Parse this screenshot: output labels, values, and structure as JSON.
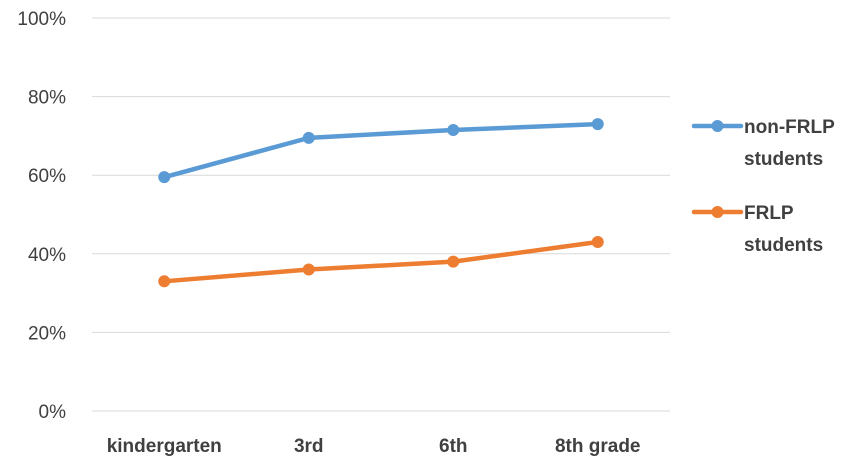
{
  "chart_data": {
    "type": "line",
    "title": "",
    "xlabel": "",
    "ylabel": "",
    "categories": [
      "kindergarten",
      "3rd",
      "6th",
      "8th grade"
    ],
    "y_ticks": [
      "0%",
      "20%",
      "40%",
      "60%",
      "80%",
      "100%"
    ],
    "ylim": [
      0,
      100
    ],
    "grid": true,
    "legend_position": "right",
    "series": [
      {
        "name": "non-FRLP students",
        "name_lines": [
          "non-FRLP",
          "students"
        ],
        "color": "#5B9BD5",
        "values": [
          59.5,
          69.5,
          71.5,
          73
        ]
      },
      {
        "name": "FRLP students",
        "name_lines": [
          "FRLP",
          "students"
        ],
        "color": "#ED7D31",
        "values": [
          33,
          36,
          38,
          43
        ]
      }
    ]
  }
}
